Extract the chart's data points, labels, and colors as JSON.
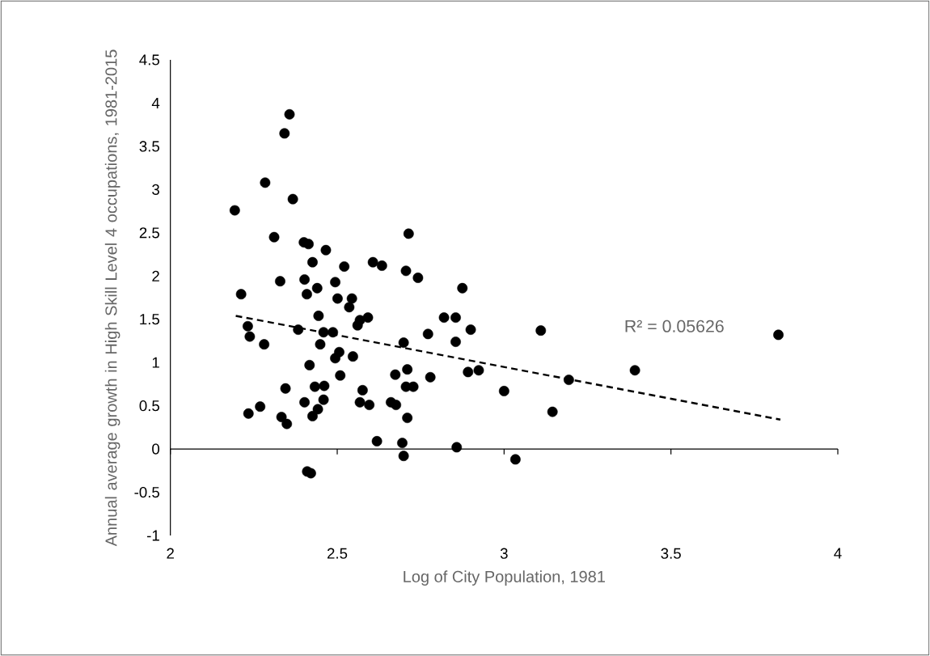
{
  "chart_data": {
    "type": "scatter",
    "xlabel": "Log of City Population, 1981",
    "ylabel": "Annual average growth in High Skill Level 4 occupations, 1981-2015",
    "annotations": [
      "R² = 0.05626"
    ],
    "xlim": [
      2,
      4
    ],
    "ylim": [
      -1,
      4.5
    ],
    "xticks": [
      2,
      2.5,
      3,
      3.5,
      4
    ],
    "yticks": [
      -1,
      -0.5,
      0,
      0.5,
      1,
      1.5,
      2,
      2.5,
      3,
      3.5,
      4,
      4.5
    ],
    "marker": "circle",
    "series": [
      {
        "color": "#000000",
        "x": [
          2.357,
          2.342,
          2.284,
          2.367,
          2.193,
          2.311,
          2.4,
          2.414,
          2.466,
          2.714,
          2.426,
          2.521,
          2.607,
          2.634,
          2.706,
          2.742,
          2.329,
          2.402,
          2.494,
          2.212,
          2.409,
          2.44,
          2.501,
          2.544,
          2.536,
          2.444,
          2.592,
          2.568,
          2.561,
          2.232,
          2.238,
          2.281,
          2.383,
          2.459,
          2.487,
          2.449,
          2.699,
          2.506,
          2.494,
          2.547,
          2.417,
          2.509,
          2.674,
          2.71,
          2.345,
          2.433,
          2.461,
          2.576,
          2.706,
          2.728,
          2.459,
          2.402,
          2.568,
          2.596,
          2.661,
          2.676,
          2.442,
          2.426,
          2.269,
          2.234,
          2.333,
          2.349,
          2.71,
          2.619,
          2.695,
          2.699,
          2.41,
          2.421,
          2.772,
          2.82,
          2.855,
          2.875,
          2.9,
          2.855,
          2.892,
          2.924,
          2.779,
          2.858,
          3.0,
          3.034,
          3.11,
          3.145,
          3.194,
          3.822,
          3.392
        ],
        "values": [
          3.87,
          3.65,
          3.08,
          2.89,
          2.76,
          2.45,
          2.39,
          2.37,
          2.3,
          2.49,
          2.16,
          2.11,
          2.16,
          2.12,
          2.06,
          1.98,
          1.94,
          1.96,
          1.93,
          1.79,
          1.79,
          1.86,
          1.74,
          1.74,
          1.64,
          1.54,
          1.52,
          1.49,
          1.43,
          1.42,
          1.3,
          1.21,
          1.38,
          1.35,
          1.35,
          1.21,
          1.23,
          1.12,
          1.05,
          1.07,
          0.97,
          0.85,
          0.86,
          0.92,
          0.7,
          0.72,
          0.73,
          0.68,
          0.72,
          0.72,
          0.57,
          0.54,
          0.54,
          0.51,
          0.54,
          0.51,
          0.46,
          0.38,
          0.49,
          0.41,
          0.37,
          0.29,
          0.36,
          0.09,
          0.07,
          -0.08,
          -0.26,
          -0.28,
          1.33,
          1.52,
          1.52,
          1.86,
          1.38,
          1.24,
          0.89,
          0.91,
          0.83,
          0.02,
          0.67,
          -0.12,
          1.37,
          0.43,
          0.8,
          1.32,
          0.91
        ]
      },
      {
        "type": "line",
        "line_style": "dashed",
        "marker": "none",
        "color": "#000000",
        "x": [
          2.196,
          3.828
        ],
        "values": [
          1.54,
          0.34
        ]
      }
    ]
  }
}
